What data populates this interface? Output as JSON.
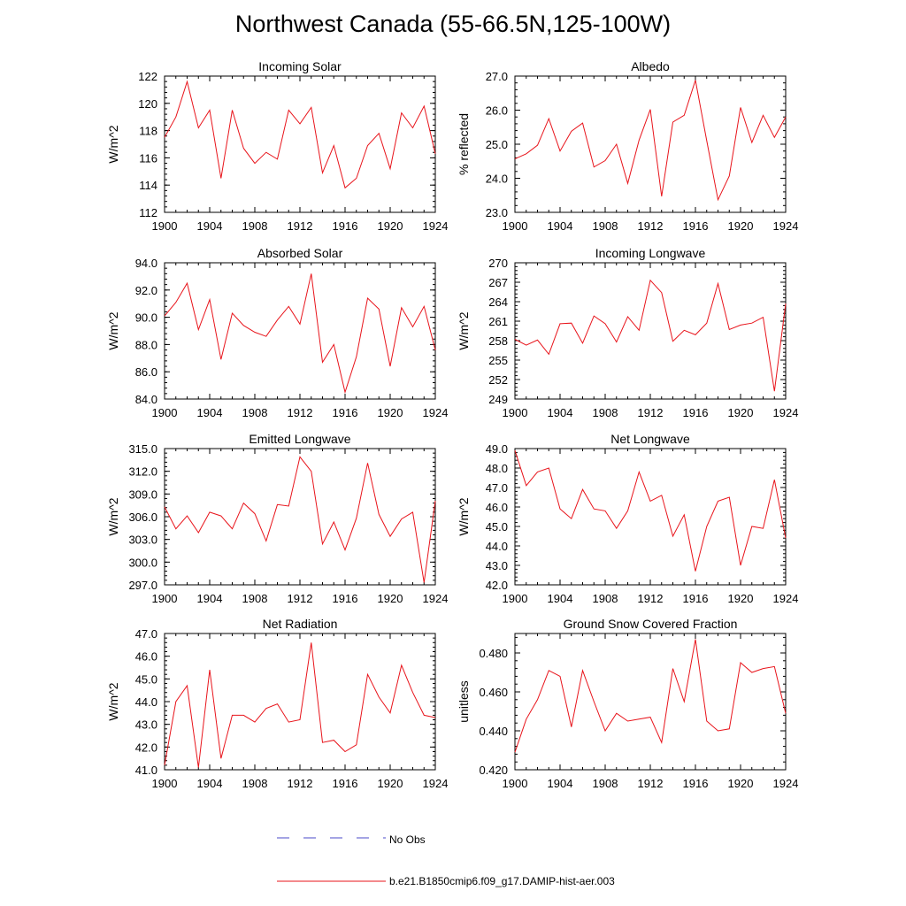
{
  "title": "Northwest Canada (55-66.5N,125-100W)",
  "colors": {
    "model_line": "#e8141b",
    "obs_line": "#4a4ac8",
    "axis": "#000000"
  },
  "legend": [
    {
      "label": "No Obs",
      "style": "dashed",
      "color": "#4a4ac8"
    },
    {
      "label": "b.e21.B1850cmip6.f09_g17.DAMIP-hist-aer.003",
      "style": "solid",
      "color": "#e8141b"
    }
  ],
  "chart_data": [
    {
      "type": "line",
      "title": "Incoming Solar",
      "ylabel": "W/m^2",
      "xlim": [
        1900,
        1924
      ],
      "ylim": [
        112,
        122
      ],
      "xticks": [
        1900,
        1904,
        1908,
        1912,
        1916,
        1920,
        1924
      ],
      "yticks": [
        112,
        114,
        116,
        118,
        120,
        122
      ],
      "ytick_labels": [
        "112",
        "114",
        "116",
        "118",
        "120",
        "122"
      ],
      "x": [
        1900,
        1901,
        1902,
        1903,
        1904,
        1905,
        1906,
        1907,
        1908,
        1909,
        1910,
        1911,
        1912,
        1913,
        1914,
        1915,
        1916,
        1917,
        1918,
        1919,
        1920,
        1921,
        1922,
        1923,
        1924
      ],
      "series": [
        {
          "values": [
            117.5,
            119.0,
            121.6,
            118.2,
            119.5,
            114.5,
            119.5,
            116.7,
            115.6,
            116.4,
            115.9,
            119.5,
            118.5,
            119.7,
            114.9,
            116.9,
            113.8,
            114.5,
            116.9,
            117.8,
            115.2,
            119.3,
            118.2,
            119.8,
            116.3
          ]
        }
      ]
    },
    {
      "type": "line",
      "title": "Albedo",
      "ylabel": "% reflected",
      "xlim": [
        1900,
        1924
      ],
      "ylim": [
        23.0,
        27.0
      ],
      "xticks": [
        1900,
        1904,
        1908,
        1912,
        1916,
        1920,
        1924
      ],
      "yticks": [
        23.0,
        24.0,
        25.0,
        26.0,
        27.0
      ],
      "ytick_labels": [
        "23.0",
        "24.0",
        "25.0",
        "26.0",
        "27.0"
      ],
      "x": [
        1900,
        1901,
        1902,
        1903,
        1904,
        1905,
        1906,
        1907,
        1908,
        1909,
        1910,
        1911,
        1912,
        1913,
        1914,
        1915,
        1916,
        1917,
        1918,
        1919,
        1920,
        1921,
        1922,
        1923,
        1924
      ],
      "series": [
        {
          "values": [
            24.57,
            24.72,
            24.97,
            25.75,
            24.8,
            25.38,
            25.62,
            24.33,
            24.52,
            25.0,
            23.85,
            25.12,
            26.02,
            23.47,
            25.65,
            25.85,
            26.88,
            25.1,
            23.37,
            24.07,
            26.08,
            25.05,
            25.85,
            25.2,
            25.8
          ]
        }
      ]
    },
    {
      "type": "line",
      "title": "Absorbed Solar",
      "ylabel": "W/m^2",
      "xlim": [
        1900,
        1924
      ],
      "ylim": [
        84.0,
        94.0
      ],
      "xticks": [
        1900,
        1904,
        1908,
        1912,
        1916,
        1920,
        1924
      ],
      "yticks": [
        84.0,
        86.0,
        88.0,
        90.0,
        92.0,
        94.0
      ],
      "ytick_labels": [
        "84.0",
        "86.0",
        "88.0",
        "90.0",
        "92.0",
        "94.0"
      ],
      "x": [
        1900,
        1901,
        1902,
        1903,
        1904,
        1905,
        1906,
        1907,
        1908,
        1909,
        1910,
        1911,
        1912,
        1913,
        1914,
        1915,
        1916,
        1917,
        1918,
        1919,
        1920,
        1921,
        1922,
        1923,
        1924
      ],
      "series": [
        {
          "values": [
            90.1,
            91.1,
            92.5,
            89.1,
            91.3,
            86.9,
            90.3,
            89.4,
            88.9,
            88.6,
            89.8,
            90.8,
            89.5,
            93.2,
            86.7,
            88.0,
            84.5,
            87.1,
            91.4,
            90.6,
            86.4,
            90.7,
            89.3,
            90.8,
            87.6
          ]
        }
      ]
    },
    {
      "type": "line",
      "title": "Incoming Longwave",
      "ylabel": "W/m^2",
      "xlim": [
        1900,
        1924
      ],
      "ylim": [
        249,
        270
      ],
      "xticks": [
        1900,
        1904,
        1908,
        1912,
        1916,
        1920,
        1924
      ],
      "yticks": [
        249,
        252,
        255,
        258,
        261,
        264,
        267,
        270
      ],
      "ytick_labels": [
        "249",
        "252",
        "255",
        "258",
        "261",
        "264",
        "267",
        "270"
      ],
      "x": [
        1900,
        1901,
        1902,
        1903,
        1904,
        1905,
        1906,
        1907,
        1908,
        1909,
        1910,
        1911,
        1912,
        1913,
        1914,
        1915,
        1916,
        1917,
        1918,
        1919,
        1920,
        1921,
        1922,
        1923,
        1924
      ],
      "series": [
        {
          "values": [
            258.2,
            257.3,
            258.1,
            255.9,
            260.6,
            260.7,
            257.6,
            261.8,
            260.6,
            257.8,
            261.7,
            259.6,
            267.3,
            265.4,
            257.9,
            259.6,
            258.9,
            260.7,
            266.8,
            259.7,
            260.4,
            260.7,
            261.6,
            250.2,
            263.7
          ]
        }
      ]
    },
    {
      "type": "line",
      "title": "Emitted Longwave",
      "ylabel": "W/m^2",
      "xlim": [
        1900,
        1924
      ],
      "ylim": [
        297.0,
        315.0
      ],
      "xticks": [
        1900,
        1904,
        1908,
        1912,
        1916,
        1920,
        1924
      ],
      "yticks": [
        297.0,
        300.0,
        303.0,
        306.0,
        309.0,
        312.0,
        315.0
      ],
      "ytick_labels": [
        "297.0",
        "300.0",
        "303.0",
        "306.0",
        "309.0",
        "312.0",
        "315.0"
      ],
      "x": [
        1900,
        1901,
        1902,
        1903,
        1904,
        1905,
        1906,
        1907,
        1908,
        1909,
        1910,
        1911,
        1912,
        1913,
        1914,
        1915,
        1916,
        1917,
        1918,
        1919,
        1920,
        1921,
        1922,
        1923,
        1924
      ],
      "series": [
        {
          "values": [
            307.3,
            304.4,
            306.1,
            303.9,
            306.6,
            306.1,
            304.4,
            307.8,
            306.4,
            302.8,
            307.6,
            307.4,
            313.9,
            312.0,
            302.4,
            305.3,
            301.6,
            305.8,
            313.1,
            306.3,
            303.4,
            305.7,
            306.6,
            297.3,
            308.1
          ]
        }
      ]
    },
    {
      "type": "line",
      "title": "Net Longwave",
      "ylabel": "W/m^2",
      "xlim": [
        1900,
        1924
      ],
      "ylim": [
        42.0,
        49.0
      ],
      "xticks": [
        1900,
        1904,
        1908,
        1912,
        1916,
        1920,
        1924
      ],
      "yticks": [
        42.0,
        43.0,
        44.0,
        45.0,
        46.0,
        47.0,
        48.0,
        49.0
      ],
      "ytick_labels": [
        "42.0",
        "43.0",
        "44.0",
        "45.0",
        "46.0",
        "47.0",
        "48.0",
        "49.0"
      ],
      "x": [
        1900,
        1901,
        1902,
        1903,
        1904,
        1905,
        1906,
        1907,
        1908,
        1909,
        1910,
        1911,
        1912,
        1913,
        1914,
        1915,
        1916,
        1917,
        1918,
        1919,
        1920,
        1921,
        1922,
        1923,
        1924
      ],
      "series": [
        {
          "values": [
            48.9,
            47.1,
            47.8,
            48.0,
            45.9,
            45.4,
            46.9,
            45.9,
            45.8,
            44.9,
            45.8,
            47.8,
            46.3,
            46.6,
            44.5,
            45.6,
            42.7,
            45.0,
            46.3,
            46.5,
            43.0,
            45.0,
            44.9,
            47.4,
            44.4
          ]
        }
      ]
    },
    {
      "type": "line",
      "title": "Net Radiation",
      "ylabel": "W/m^2",
      "xlim": [
        1900,
        1924
      ],
      "ylim": [
        41.0,
        47.0
      ],
      "xticks": [
        1900,
        1904,
        1908,
        1912,
        1916,
        1920,
        1924
      ],
      "yticks": [
        41.0,
        42.0,
        43.0,
        44.0,
        45.0,
        46.0,
        47.0
      ],
      "ytick_labels": [
        "41.0",
        "42.0",
        "43.0",
        "44.0",
        "45.0",
        "46.0",
        "47.0"
      ],
      "x": [
        1900,
        1901,
        1902,
        1903,
        1904,
        1905,
        1906,
        1907,
        1908,
        1909,
        1910,
        1911,
        1912,
        1913,
        1914,
        1915,
        1916,
        1917,
        1918,
        1919,
        1920,
        1921,
        1922,
        1923,
        1924
      ],
      "series": [
        {
          "values": [
            41.2,
            44.0,
            44.7,
            41.1,
            45.4,
            41.5,
            43.4,
            43.4,
            43.1,
            43.7,
            43.9,
            43.1,
            43.2,
            46.6,
            42.2,
            42.3,
            41.8,
            42.1,
            45.2,
            44.2,
            43.5,
            45.6,
            44.4,
            43.4,
            43.3
          ]
        }
      ]
    },
    {
      "type": "line",
      "title": "Ground Snow Covered Fraction",
      "ylabel": "unitless",
      "xlim": [
        1900,
        1924
      ],
      "ylim": [
        0.42,
        0.49
      ],
      "xticks": [
        1900,
        1904,
        1908,
        1912,
        1916,
        1920,
        1924
      ],
      "yticks": [
        0.42,
        0.44,
        0.46,
        0.48
      ],
      "ytick_labels": [
        "0.420",
        "0.440",
        "0.460",
        "0.480"
      ],
      "x": [
        1900,
        1901,
        1902,
        1903,
        1904,
        1905,
        1906,
        1907,
        1908,
        1909,
        1910,
        1911,
        1912,
        1913,
        1914,
        1915,
        1916,
        1917,
        1918,
        1919,
        1920,
        1921,
        1922,
        1923,
        1924
      ],
      "series": [
        {
          "values": [
            0.429,
            0.446,
            0.456,
            0.471,
            0.468,
            0.442,
            0.471,
            0.455,
            0.44,
            0.449,
            0.445,
            0.446,
            0.447,
            0.434,
            0.472,
            0.455,
            0.487,
            0.445,
            0.44,
            0.441,
            0.475,
            0.47,
            0.472,
            0.473,
            0.449
          ]
        }
      ]
    }
  ]
}
